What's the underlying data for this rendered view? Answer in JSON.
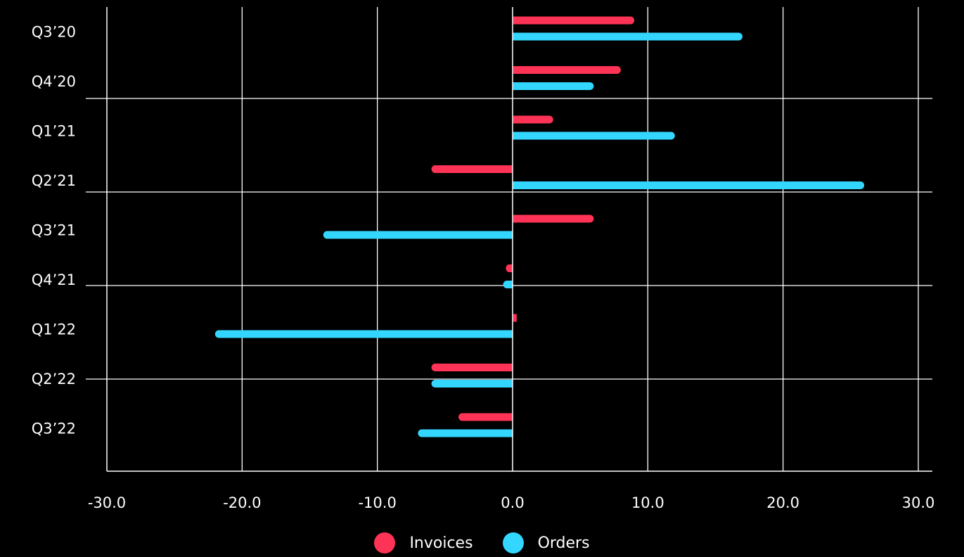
{
  "chart_data": {
    "type": "bar",
    "orientation": "horizontal",
    "categories": [
      "Q3’20",
      "Q4’20",
      "Q1’21",
      "Q2’21",
      "Q3’21",
      "Q4’21",
      "Q1’22",
      "Q2’22",
      "Q3’22"
    ],
    "series": [
      {
        "name": "Invoices",
        "color": "#ff3355",
        "values": [
          9.0,
          8.0,
          3.0,
          -6.0,
          6.0,
          -0.5,
          0.3,
          -6.0,
          -4.0
        ]
      },
      {
        "name": "Orders",
        "color": "#33d6ff",
        "values": [
          17.0,
          6.0,
          12.0,
          26.0,
          -14.0,
          -0.7,
          -22.0,
          -6.0,
          -7.0
        ]
      }
    ],
    "x_ticks": [
      "-30.0",
      "-20.0",
      "-10.0",
      "0.0",
      "10.0",
      "20.0",
      "30.0"
    ],
    "xlim": [
      -30,
      30
    ],
    "grid": true,
    "legend_position": "bottom-center",
    "background": "#000000"
  }
}
